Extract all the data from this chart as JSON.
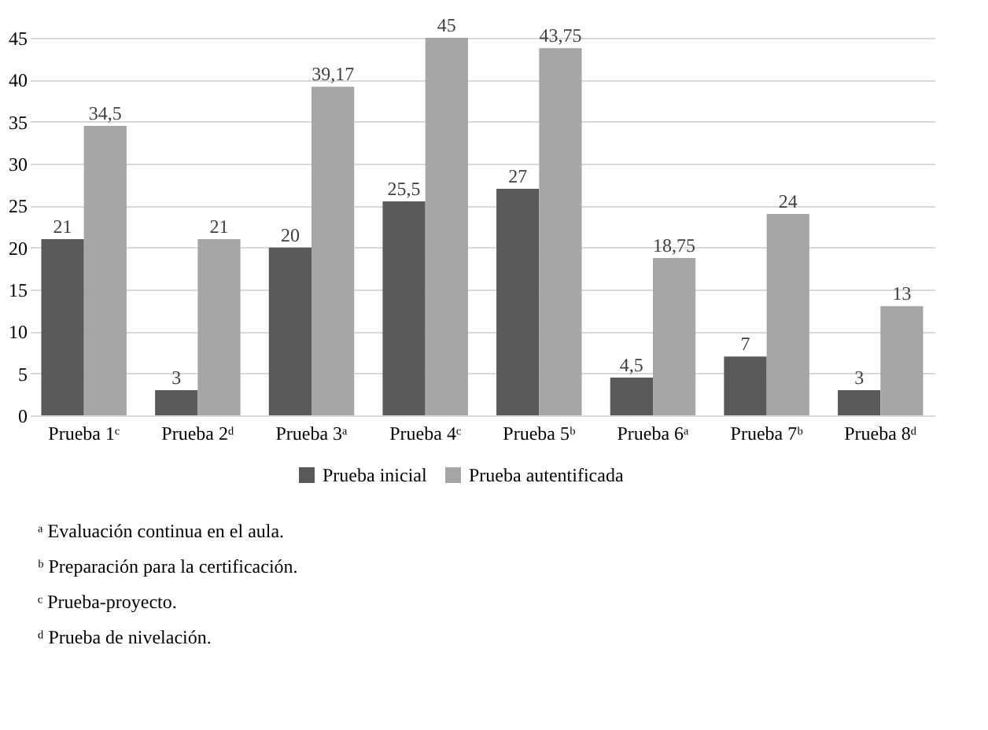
{
  "chart_data": {
    "type": "bar",
    "categories": [
      "Prueba 1ᶜ",
      "Prueba 2ᵈ",
      "Prueba 3ᵃ",
      "Prueba 4ᶜ",
      "Prueba 5ᵇ",
      "Prueba 6ᵃ",
      "Prueba 7ᵇ",
      "Prueba 8ᵈ"
    ],
    "series": [
      {
        "name": "Prueba inicial",
        "color": "#595959",
        "values": [
          21,
          3,
          20,
          25.5,
          27,
          4.5,
          7,
          3
        ],
        "value_labels": [
          "21",
          "3",
          "20",
          "25,5",
          "27",
          "4,5",
          "7",
          "3"
        ]
      },
      {
        "name": "Prueba autentificada",
        "color": "#a6a6a6",
        "values": [
          34.5,
          21,
          39.17,
          45,
          43.75,
          18.75,
          24,
          13
        ],
        "value_labels": [
          "34,5",
          "21",
          "39,17",
          "45",
          "43,75",
          "18,75",
          "24",
          "13"
        ]
      }
    ],
    "ylim": [
      0,
      45
    ],
    "yticks": [
      0,
      5,
      10,
      15,
      20,
      25,
      30,
      35,
      40,
      45
    ],
    "grid": "y",
    "legend": "bottom",
    "annotations": [
      "ᵃ Evaluación continua en el aula.",
      "ᵇ Preparación para la certificación.",
      "ᶜ Prueba-proyecto.",
      "ᵈ Prueba de nivelación."
    ]
  }
}
